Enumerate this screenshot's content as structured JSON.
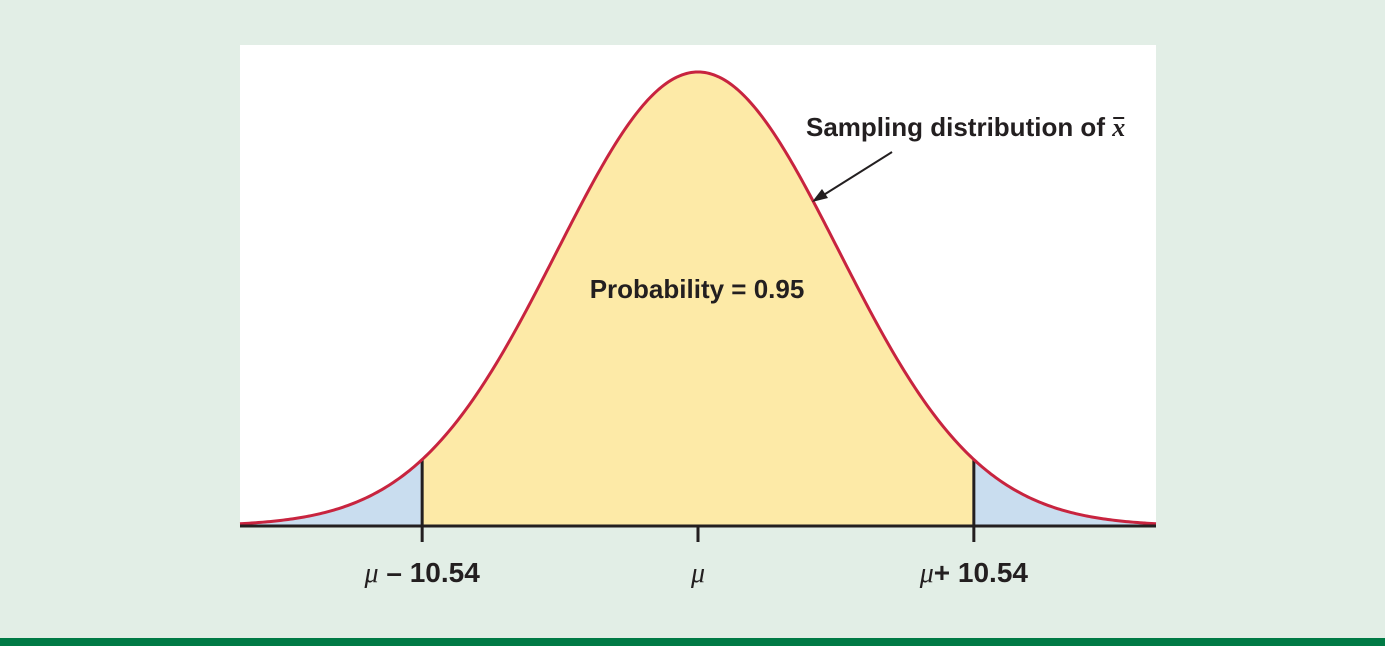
{
  "colors": {
    "page_background": "#e2eee6",
    "plot_background": "#ffffff",
    "curve": "#c8243f",
    "center_fill": "#fdeaa7",
    "tail_fill": "#c9ddef",
    "axis": "#231f20",
    "bottom_bar": "#007a45"
  },
  "chart_data": {
    "type": "area",
    "distribution": "normal",
    "mean": 0,
    "sd": 5.377,
    "xlim": [
      -17.5,
      17.5
    ],
    "center_probability": 0.95,
    "cutoffs": [
      -10.54,
      10.54
    ],
    "tick_values": [
      -10.54,
      0,
      10.54
    ],
    "tick_labels": [
      {
        "symbol": "μ",
        "rest": " – 10.54"
      },
      {
        "symbol": "μ",
        "rest": ""
      },
      {
        "symbol": "μ",
        "rest": "+ 10.54"
      }
    ],
    "annotations": {
      "curve_label_text": "Sampling distribution of ",
      "curve_label_symbol": "x",
      "area_label": "Probability = 0.95"
    }
  }
}
